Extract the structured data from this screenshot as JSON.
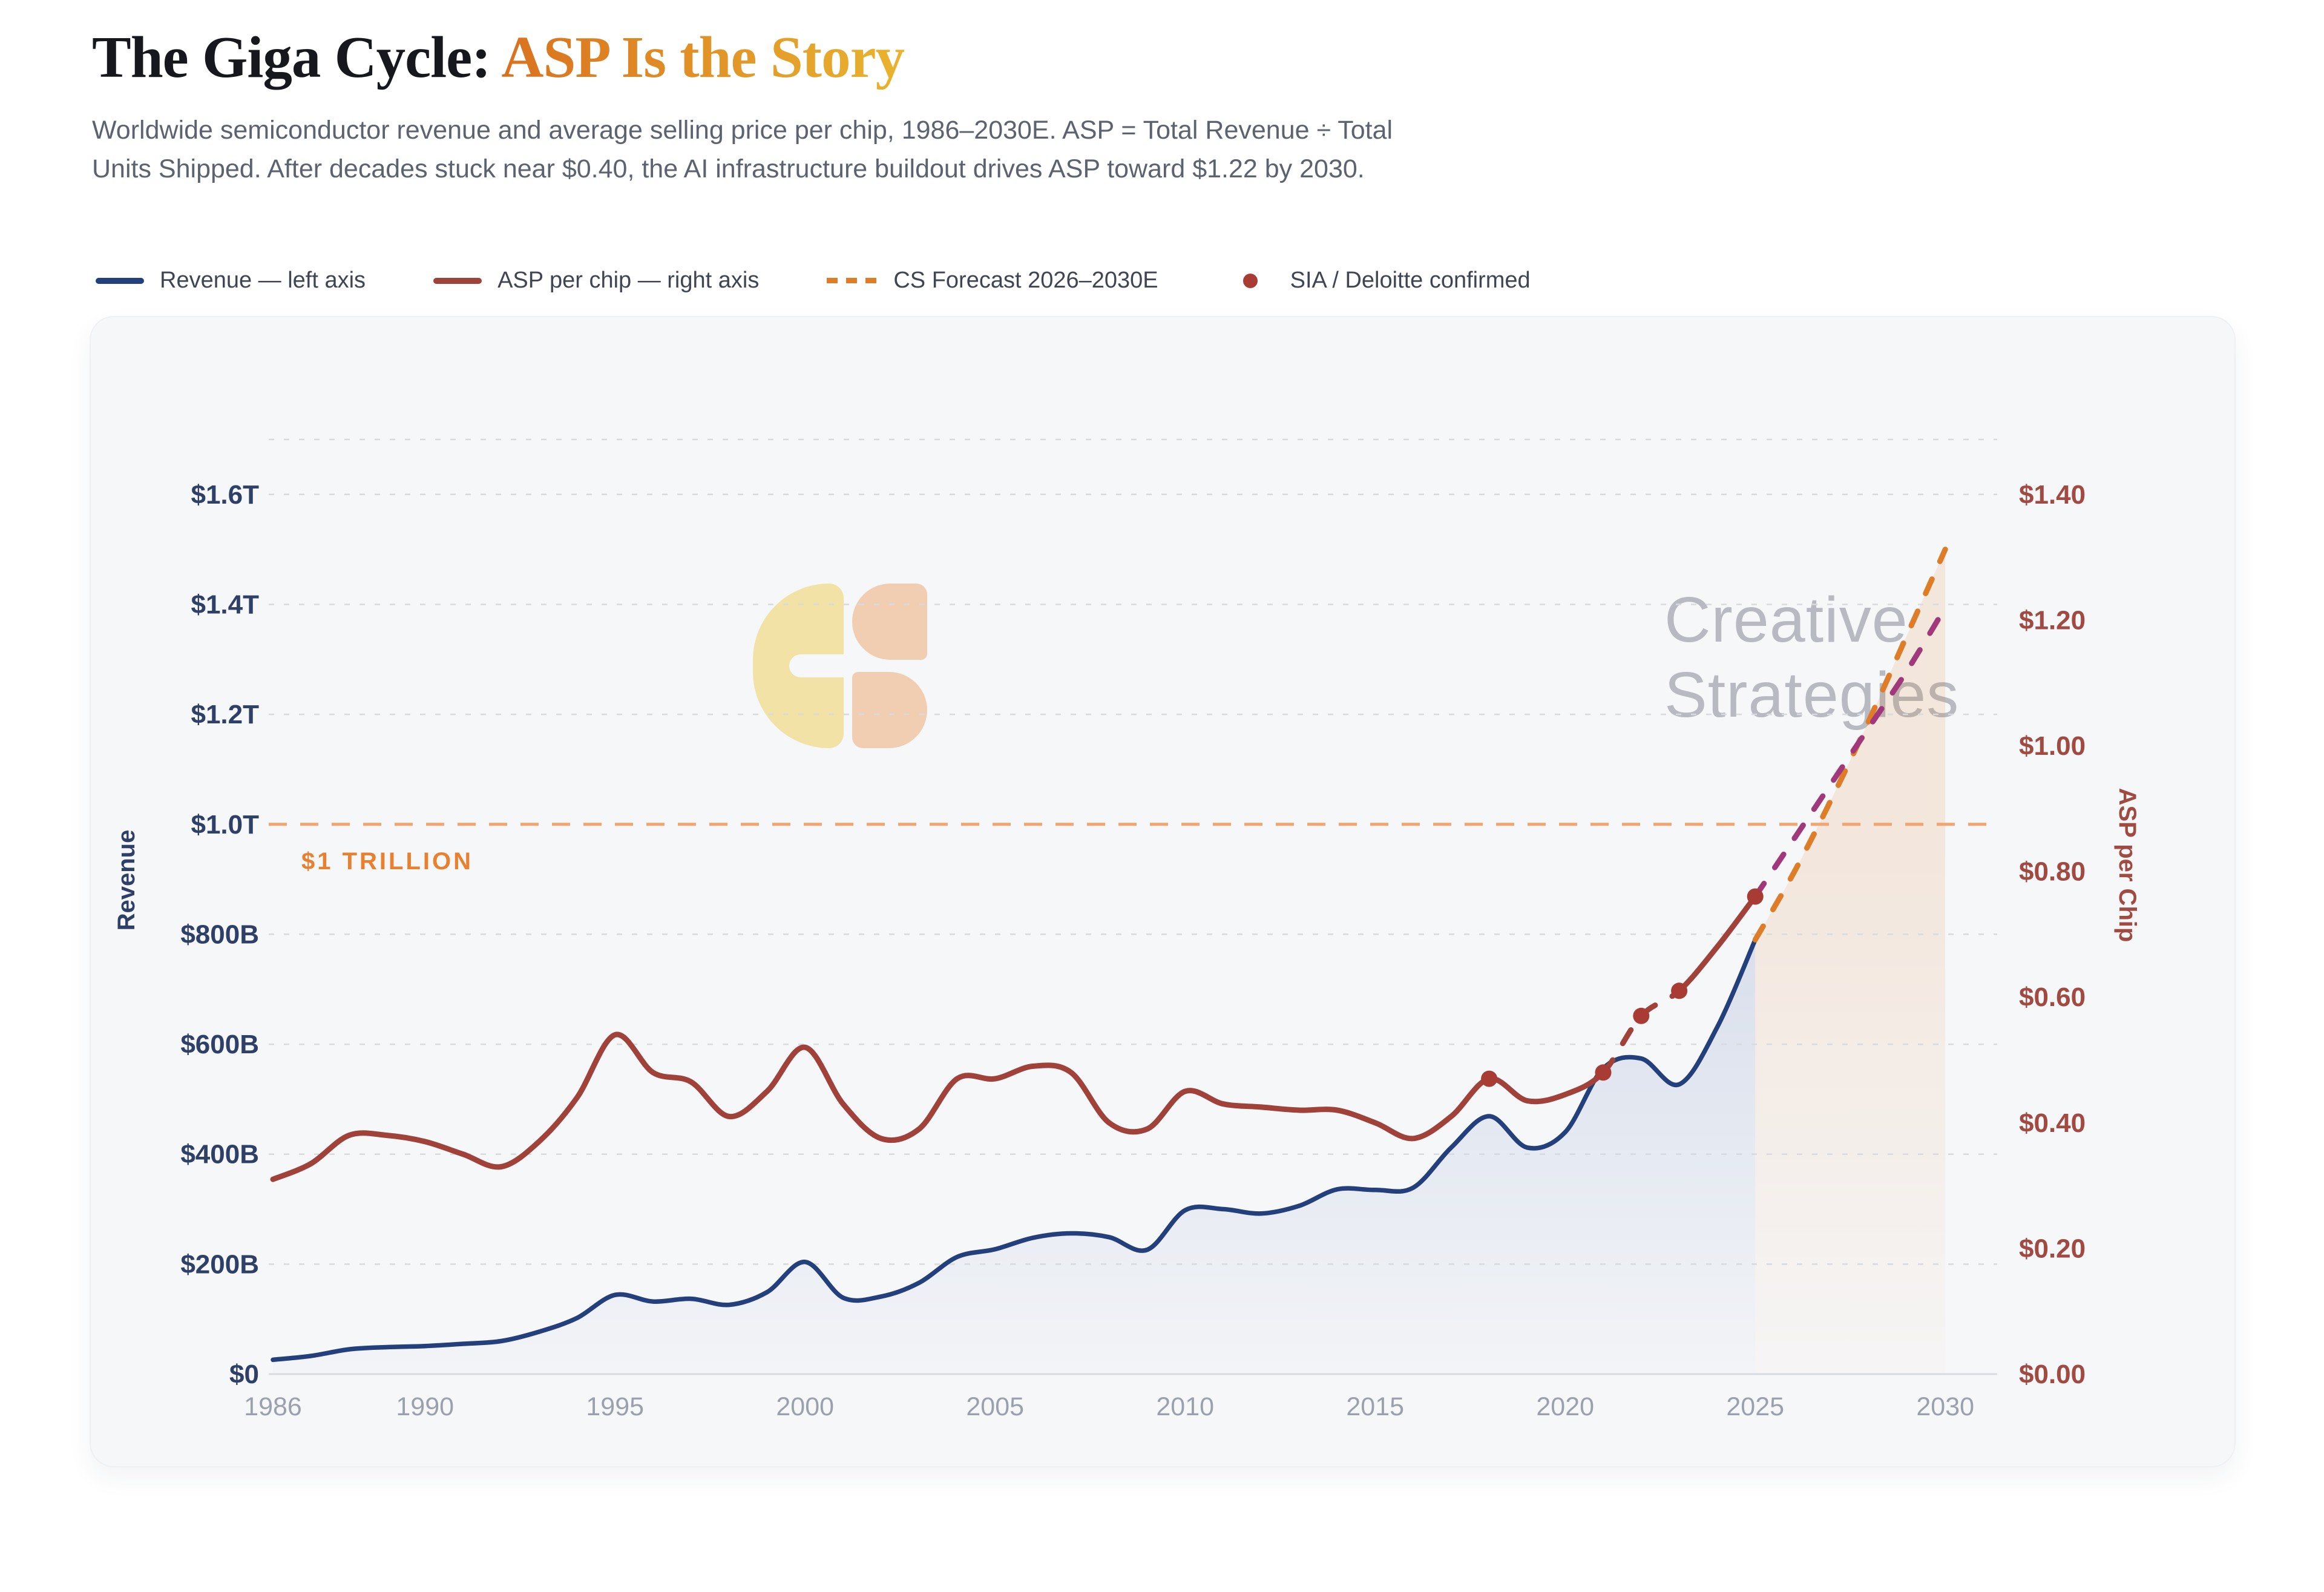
{
  "header": {
    "title_dark": "The Giga Cycle: ",
    "title_accent": "ASP Is the Story",
    "subtitle_line1": "Worldwide semiconductor revenue and average selling price per chip, 1986–2030E. ASP = Total Revenue ÷ Total",
    "subtitle_line2": "Units Shipped. After decades stuck near $0.40, the AI infrastructure buildout drives ASP toward $1.22 by 2030."
  },
  "legend": {
    "items": [
      {
        "label": "Revenue — left axis",
        "swatch": "line",
        "color": "#24407c"
      },
      {
        "label": "ASP per chip — right axis",
        "swatch": "line",
        "color": "#a0413a"
      },
      {
        "label": "CS Forecast 2026–2030E",
        "swatch": "dashed",
        "color": "#df7c27"
      },
      {
        "label": "SIA / Deloitte confirmed",
        "swatch": "dot",
        "color": "#a93b35"
      }
    ]
  },
  "watermark": {
    "line1": "Creative",
    "line2": "Strategies"
  },
  "colors": {
    "revenue_line": "#24407c",
    "asp_line": "#a0413a",
    "revenue_forecast": "#df7c27",
    "asp_forecast": "#a1387b",
    "confirmed_dot": "#a93b35",
    "trillion_line": "#f2a570",
    "trillion_label": "#e8802f",
    "grid": "#d7dade",
    "baseline": "#d9dbe0",
    "left_tick": "#2f4068",
    "right_tick": "#a04a42",
    "x_tick": "#9ba1ac"
  },
  "chart_data": {
    "type": "line",
    "title": "The Giga Cycle: ASP Is the Story",
    "x_axis": {
      "ticks": [
        1986,
        1990,
        1995,
        2000,
        2005,
        2010,
        2015,
        2020,
        2025,
        2030
      ],
      "range": [
        1986,
        2030
      ]
    },
    "left_axis": {
      "title": "Revenue",
      "units": "USD",
      "ylim_billions": [
        0,
        1700
      ],
      "ticks": [
        {
          "label": "$1.6T",
          "value": 1600
        },
        {
          "label": "$1.4T",
          "value": 1400
        },
        {
          "label": "$1.2T",
          "value": 1200
        },
        {
          "label": "$1.0T",
          "value": 1000
        },
        {
          "label": "$800B",
          "value": 800
        },
        {
          "label": "$600B",
          "value": 600
        },
        {
          "label": "$400B",
          "value": 400
        },
        {
          "label": "$200B",
          "value": 200
        },
        {
          "label": "$0",
          "value": 0
        }
      ]
    },
    "right_axis": {
      "title": "ASP per Chip",
      "units": "USD per chip",
      "ylim": [
        0,
        1.4875
      ],
      "ticks": [
        {
          "label": "$1.40",
          "value": 1.4
        },
        {
          "label": "$1.20",
          "value": 1.2
        },
        {
          "label": "$1.00",
          "value": 1.0
        },
        {
          "label": "$0.80",
          "value": 0.8
        },
        {
          "label": "$0.60",
          "value": 0.6
        },
        {
          "label": "$0.40",
          "value": 0.4
        },
        {
          "label": "$0.20",
          "value": 0.2
        },
        {
          "label": "$0.00",
          "value": 0.0
        }
      ]
    },
    "grid": "dashed horizontal",
    "legend_position": "top-left above chart",
    "annotations": {
      "trillion": {
        "label": "$1 TRILLION",
        "value_billions": 1000
      }
    },
    "series": {
      "revenue": {
        "name": "Revenue — left axis",
        "axis": "left",
        "style": "solid, area fill below",
        "years": [
          1986,
          1987,
          1988,
          1989,
          1990,
          1991,
          1992,
          1993,
          1994,
          1995,
          1996,
          1997,
          1998,
          1999,
          2000,
          2001,
          2002,
          2003,
          2004,
          2005,
          2006,
          2007,
          2008,
          2009,
          2010,
          2011,
          2012,
          2013,
          2014,
          2015,
          2016,
          2017,
          2018,
          2019,
          2020,
          2021,
          2022,
          2023,
          2024,
          2025
        ],
        "values_billions": [
          26,
          33,
          45,
          49,
          51,
          55,
          60,
          77,
          102,
          144,
          132,
          137,
          126,
          149,
          204,
          139,
          141,
          166,
          213,
          227,
          248,
          256,
          249,
          226,
          298,
          300,
          292,
          306,
          336,
          335,
          339,
          412,
          469,
          412,
          440,
          556,
          574,
          527,
          631,
          790
        ]
      },
      "asp": {
        "name": "ASP per chip — right axis",
        "axis": "right",
        "style": "solid, dashed between 2021 and 2023",
        "dashed_span": [
          2021,
          2023
        ],
        "years": [
          1986,
          1987,
          1988,
          1989,
          1990,
          1991,
          1992,
          1993,
          1994,
          1995,
          1996,
          1997,
          1998,
          1999,
          2000,
          2001,
          2002,
          2003,
          2004,
          2005,
          2006,
          2007,
          2008,
          2009,
          2010,
          2011,
          2012,
          2013,
          2014,
          2015,
          2016,
          2017,
          2018,
          2019,
          2020,
          2021,
          2022,
          2023,
          2024,
          2025
        ],
        "values_usd": [
          0.31,
          0.335,
          0.38,
          0.38,
          0.37,
          0.35,
          0.33,
          0.37,
          0.44,
          0.54,
          0.48,
          0.465,
          0.41,
          0.45,
          0.52,
          0.43,
          0.375,
          0.39,
          0.47,
          0.47,
          0.49,
          0.48,
          0.4,
          0.39,
          0.45,
          0.43,
          0.425,
          0.42,
          0.42,
          0.4,
          0.375,
          0.41,
          0.47,
          0.435,
          0.445,
          0.48,
          0.57,
          0.61,
          0.68,
          0.76
        ]
      },
      "revenue_forecast": {
        "name": "CS Forecast 2026–2030E (revenue)",
        "axis": "left",
        "style": "dashed, pale area fill below",
        "years": [
          2025,
          2026,
          2027,
          2028,
          2029,
          2030
        ],
        "values_billions": [
          790,
          910,
          1045,
          1190,
          1345,
          1500
        ]
      },
      "asp_forecast": {
        "name": "CS Forecast 2026–2030E (ASP)",
        "axis": "right",
        "style": "dashed",
        "years": [
          2025,
          2026,
          2027,
          2028,
          2029,
          2030
        ],
        "values_usd": [
          0.76,
          0.85,
          0.94,
          1.03,
          1.12,
          1.22
        ]
      },
      "confirmed_points": {
        "name": "SIA / Deloitte confirmed",
        "axis": "right",
        "points": [
          {
            "year": 2018,
            "asp_usd": 0.47
          },
          {
            "year": 2021,
            "asp_usd": 0.48
          },
          {
            "year": 2022,
            "asp_usd": 0.57
          },
          {
            "year": 2023,
            "asp_usd": 0.61
          },
          {
            "year": 2025,
            "asp_usd": 0.76
          }
        ]
      }
    }
  }
}
